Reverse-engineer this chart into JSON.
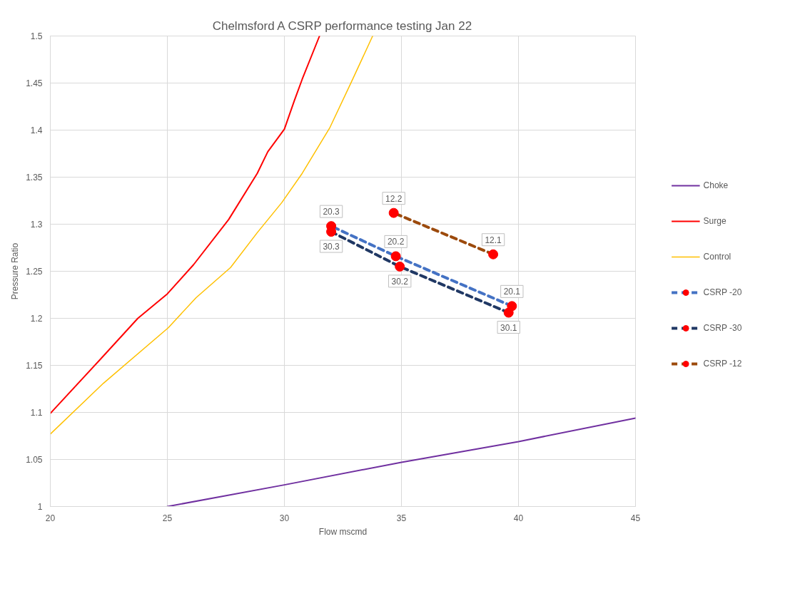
{
  "chart_data": {
    "type": "line",
    "title": "Chelmsford A CSRP performance testing Jan 22",
    "xlabel": "Flow mscmd",
    "ylabel": "Pressure Ratio",
    "xlim": [
      20,
      45
    ],
    "ylim": [
      1,
      1.5
    ],
    "xticks": [
      20,
      25,
      30,
      35,
      40,
      45
    ],
    "yticks": [
      1,
      1.05,
      1.1,
      1.15,
      1.2,
      1.25,
      1.3,
      1.35,
      1.4,
      1.45,
      1.5
    ],
    "grid": true,
    "legend": "right",
    "series": [
      {
        "name": "Choke",
        "color": "#7030a0",
        "x": [
          25,
          30,
          35,
          40,
          45
        ],
        "values": [
          1.0,
          1.023,
          1.047,
          1.069,
          1.094
        ],
        "marker": "none",
        "line_style": "solid"
      },
      {
        "name": "Surge",
        "color": "#ff0000",
        "x": [
          20,
          22.27,
          23.74,
          25,
          26.12,
          27.62,
          28.84,
          29.29,
          30,
          30.42,
          30.76,
          31.5
        ],
        "values": [
          1.099,
          1.16,
          1.2,
          1.226,
          1.257,
          1.305,
          1.354,
          1.377,
          1.401,
          1.431,
          1.454,
          1.5
        ],
        "marker": "none",
        "line_style": "solid"
      },
      {
        "name": "Control",
        "color": "#ffc000",
        "x": [
          20,
          22.27,
          25.04,
          26.23,
          27.7,
          28.84,
          29.89,
          30.76,
          31.95,
          32.86,
          33.77
        ],
        "values": [
          1.077,
          1.131,
          1.19,
          1.222,
          1.254,
          1.291,
          1.323,
          1.354,
          1.403,
          1.451,
          1.5
        ],
        "marker": "none",
        "line_style": "solid"
      },
      {
        "name": "CSRP -20",
        "color": "#4472c4",
        "x": [
          39.72,
          34.76,
          32.0
        ],
        "values": [
          1.213,
          1.266,
          1.298
        ],
        "marker": "circle",
        "line_style": "dashed"
      },
      {
        "name": "CSRP -30",
        "color": "#203864",
        "x": [
          39.58,
          34.93,
          32.0
        ],
        "values": [
          1.206,
          1.255,
          1.292
        ],
        "marker": "circle",
        "line_style": "dashed"
      },
      {
        "name": "CSRP -12",
        "color": "#9c4a0c",
        "x": [
          38.92,
          34.67
        ],
        "values": [
          1.268,
          1.312
        ],
        "marker": "circle",
        "line_style": "dashed"
      }
    ],
    "annotations": [
      {
        "text": "20.1",
        "x": 39.72,
        "y": 1.213
      },
      {
        "text": "20.2",
        "x": 34.76,
        "y": 1.266
      },
      {
        "text": "20.3",
        "x": 32.0,
        "y": 1.298
      },
      {
        "text": "30.1",
        "x": 39.58,
        "y": 1.206
      },
      {
        "text": "30.2",
        "x": 34.93,
        "y": 1.255
      },
      {
        "text": "30.3",
        "x": 32.0,
        "y": 1.292
      },
      {
        "text": "12.1",
        "x": 38.92,
        "y": 1.268
      },
      {
        "text": "12.2",
        "x": 34.67,
        "y": 1.312
      }
    ]
  }
}
